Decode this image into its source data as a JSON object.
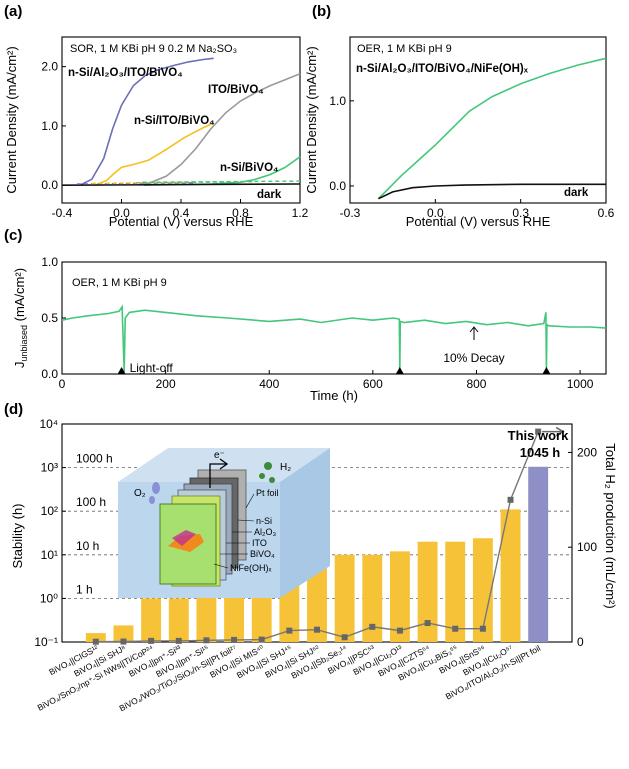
{
  "colors": {
    "purple": "#6b6fb5",
    "gray": "#9a9a9a",
    "yellow": "#f5c01c",
    "green": "#43c77a",
    "black": "#111111",
    "bar": "#f6c338",
    "barThis": "#8e8fc6",
    "red": "#e0202a",
    "line": "#777777"
  },
  "chart_data": [
    {
      "type": "line",
      "panel": "(a)",
      "annotation": "SOR, 1 M KBi  pH 9  0.2 M Na₂SO₃",
      "xlabel": "Potential (V) versus RHE",
      "ylabel": "Current Density (mA/cm²)",
      "xlim": [
        -0.4,
        1.2
      ],
      "ylim": [
        -0.3,
        2.5
      ],
      "xticks": [
        "-0.4",
        "0.0",
        "0.4",
        "0.8",
        "1.2"
      ],
      "yticks": [
        "0.0",
        "1.0",
        "2.0"
      ],
      "series": [
        {
          "name": "n-Si/Al₂O₃/ITO/BiVO₄",
          "color": "purple",
          "x": [
            -0.28,
            -0.2,
            -0.12,
            -0.06,
            0.0,
            0.08,
            0.16,
            0.25,
            0.35,
            0.45,
            0.55,
            0.62
          ],
          "y": [
            0,
            0.1,
            0.45,
            0.95,
            1.35,
            1.68,
            1.85,
            1.95,
            2.02,
            2.08,
            2.12,
            2.14
          ]
        },
        {
          "name": "n-Si/ITO/BiVO₄",
          "color": "yellow",
          "x": [
            -0.18,
            -0.1,
            -0.05,
            0.0,
            0.08,
            0.18,
            0.3,
            0.42,
            0.55,
            0.62
          ],
          "y": [
            0,
            0.08,
            0.2,
            0.3,
            0.35,
            0.42,
            0.6,
            0.8,
            0.97,
            1.05
          ]
        },
        {
          "name": "ITO/BiVO₄",
          "color": "gray",
          "x": [
            0.12,
            0.2,
            0.3,
            0.4,
            0.5,
            0.6,
            0.7,
            0.8,
            0.9,
            1.0,
            1.1,
            1.2
          ],
          "y": [
            0,
            0.05,
            0.15,
            0.35,
            0.62,
            0.95,
            1.22,
            1.42,
            1.56,
            1.68,
            1.78,
            1.88
          ]
        },
        {
          "name": "n-Si/BiVO₄",
          "color": "green",
          "x": [
            0.15,
            0.4,
            0.6,
            0.8,
            0.9,
            1.0,
            1.1,
            1.2
          ],
          "y": [
            0,
            0.01,
            0.02,
            0.05,
            0.1,
            0.18,
            0.3,
            0.48
          ]
        },
        {
          "name": "dark",
          "color": "black",
          "x": [
            -0.4,
            1.2
          ],
          "y": [
            0.0,
            0.02
          ]
        }
      ]
    },
    {
      "type": "line",
      "panel": "(b)",
      "annotation": "OER, 1 M KBi  pH 9",
      "xlabel": "Potential (V) versus RHE",
      "ylabel": "Current Density (mA/cm²)",
      "xlim": [
        -0.3,
        0.6
      ],
      "ylim": [
        -0.2,
        1.75
      ],
      "xticks": [
        "-0.3",
        "0.0",
        "0.3",
        "0.6"
      ],
      "yticks": [
        "0.0",
        "1.0"
      ],
      "series": [
        {
          "name": "n-Si/Al₂O₃/ITO/BiVO₄/NiFe(OH)ₓ",
          "color": "green",
          "x": [
            -0.2,
            -0.17,
            -0.12,
            -0.06,
            0.0,
            0.06,
            0.12,
            0.2,
            0.3,
            0.4,
            0.5,
            0.6
          ],
          "y": [
            -0.15,
            -0.05,
            0.12,
            0.3,
            0.48,
            0.68,
            0.88,
            1.05,
            1.2,
            1.32,
            1.42,
            1.5
          ]
        },
        {
          "name": "dark",
          "color": "black",
          "x": [
            -0.2,
            -0.15,
            -0.08,
            0.0,
            0.1,
            0.3,
            0.6
          ],
          "y": [
            -0.15,
            -0.07,
            -0.02,
            0.0,
            0.01,
            0.02,
            0.02
          ]
        }
      ]
    },
    {
      "type": "line",
      "panel": "(c)",
      "annotation": "OER, 1 M KBi  pH 9",
      "xlabel": "Time (h)",
      "ylabel": "J",
      "ylabel_sub": "unbiased",
      "ylabel_unit": " (mA/cm²)",
      "xlim": [
        0,
        1050
      ],
      "ylim": [
        0,
        1.0
      ],
      "xticks": [
        "0",
        "200",
        "400",
        "600",
        "800",
        "1000"
      ],
      "yticks": [
        "0.0",
        "0.5",
        "1.0"
      ],
      "markers": [
        {
          "x": 115,
          "label": "Light-off"
        },
        {
          "x": 652,
          "label": ""
        },
        {
          "x": 935,
          "label": ""
        }
      ],
      "decay_label": "10% Decay",
      "series": [
        {
          "name": "",
          "color": "green",
          "x": [
            0,
            20,
            50,
            90,
            110,
            116,
            120,
            122,
            130,
            160,
            200,
            260,
            320,
            400,
            460,
            500,
            560,
            600,
            640,
            651,
            652,
            653,
            660,
            700,
            740,
            780,
            820,
            860,
            900,
            930,
            934,
            935,
            936,
            940,
            980,
            1020,
            1050
          ],
          "y": [
            0.48,
            0.5,
            0.52,
            0.54,
            0.56,
            0.6,
            0.02,
            0.5,
            0.55,
            0.57,
            0.55,
            0.52,
            0.5,
            0.47,
            0.49,
            0.46,
            0.5,
            0.48,
            0.5,
            0.49,
            0.03,
            0.47,
            0.46,
            0.48,
            0.45,
            0.47,
            0.44,
            0.46,
            0.43,
            0.45,
            0.55,
            0.02,
            0.44,
            0.43,
            0.42,
            0.42,
            0.41
          ]
        }
      ]
    },
    {
      "type": "bar",
      "panel": "(d)",
      "ylabel": "Stability (h)",
      "y2label": "Total H₂ production (mL/cm²)",
      "yscale": "log",
      "ylim": [
        0.1,
        10000
      ],
      "y2lim": [
        0,
        230
      ],
      "yticks": [
        "10⁻¹",
        "10⁰",
        "10¹",
        "10²",
        "10³",
        "10⁴"
      ],
      "y2ticks": [
        "0",
        "100",
        "200"
      ],
      "gridlines": [
        {
          "v": 1,
          "label": "1 h"
        },
        {
          "v": 10,
          "label": "10 h"
        },
        {
          "v": 100,
          "label": "100 h"
        },
        {
          "v": 1000,
          "label": "1000 h"
        }
      ],
      "highlight": {
        "title": "This work",
        "value": "1045 h"
      },
      "inset_labels": [
        "e⁻",
        "H₂",
        "O₂",
        "Pt foil",
        "n-Si",
        "Al₂O₃",
        "ITO",
        "BiVO₄",
        "NiFe(OH)ₓ"
      ],
      "categories": [
        "BiVO₄||CIGS¹²",
        "BiVO₄||Si SHJ⁸",
        "BiVO₄/SnO₂/np⁺-Si NWs||Ti/CoP²⁴",
        "BiVO₄||pn⁺-Si³³",
        "BiVO₄||pn⁺-Si¹⁵",
        "BiVO₄/WO₃/TiO₂/SiOₓ/n-Si||Pt foil²⁷",
        "BiVO₄||Si MIS⁴⁰",
        "BiVO₄||Si SHJ⁴⁵",
        "BiVO₄||Si SHJ⁶²",
        "BiVO₄||Sb₂Se₃¹⁴",
        "BiVO₄||PSC⁵³",
        "BiVO₄||Cu₂O¹³",
        "BiVO₄||CZTS⁵⁴",
        "BiVO₄||Cu₃BiS₃⁵⁵",
        "BiVO₄||SnS⁵⁶",
        "BiVO₄||Cu₂O⁵⁷",
        "BiVO₄/ITO/Al₂O₃/n-Si||Pt foil"
      ],
      "stability_h": [
        0.16,
        0.24,
        1.0,
        1.0,
        1.5,
        2.0,
        2.0,
        10,
        10,
        10,
        10,
        12,
        20,
        20,
        24,
        110,
        1045
      ],
      "h2_production": [
        0.3,
        0.5,
        1.2,
        1.2,
        1.8,
        2.2,
        2.5,
        12,
        13,
        5,
        16,
        12,
        20,
        14,
        14,
        150,
        222
      ]
    }
  ]
}
